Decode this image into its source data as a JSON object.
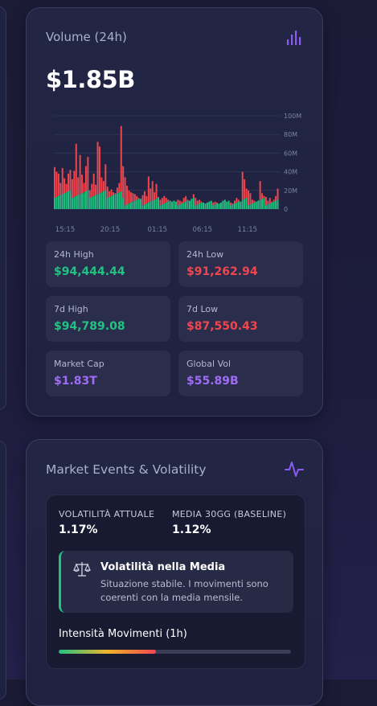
{
  "volume_card": {
    "title": "Volume (24h)",
    "icon": "bar-chart-icon",
    "value": "$1.85B",
    "stats": [
      {
        "label": "24h High",
        "value": "$94,444.44",
        "color": "#22c283"
      },
      {
        "label": "24h Low",
        "value": "$91,262.94",
        "color": "#f0474f"
      },
      {
        "label": "7d High",
        "value": "$94,789.08",
        "color": "#22c283"
      },
      {
        "label": "7d Low",
        "value": "$87,550.43",
        "color": "#f0474f"
      },
      {
        "label": "Market Cap",
        "value": "$1.83T",
        "color": "#a06cf5"
      },
      {
        "label": "Global Vol",
        "value": "$55.89B",
        "color": "#a06cf5"
      }
    ]
  },
  "chart_data": {
    "type": "bar",
    "x_ticks": [
      "15:15",
      "20:15",
      "01:15",
      "06:15",
      "11:15"
    ],
    "y_ticks": [
      "100M",
      "80M",
      "60M",
      "40M",
      "20M",
      "0"
    ],
    "ylim": [
      0,
      100
    ],
    "grid": true,
    "colors": {
      "up": "#22c283",
      "down": "#f0474f"
    },
    "series": [
      {
        "values": [
          45,
          40,
          38,
          28,
          44,
          33,
          27,
          38,
          42,
          32,
          41,
          70,
          34,
          58,
          37,
          28,
          46,
          56,
          20,
          27,
          38,
          26,
          72,
          67,
          34,
          30,
          48,
          24,
          19,
          21,
          18,
          17,
          23,
          28,
          89,
          46,
          34,
          25,
          20,
          18,
          17,
          16,
          14,
          12,
          11,
          15,
          19,
          14,
          35,
          22,
          30,
          18,
          27,
          13,
          10,
          12,
          14,
          12,
          10,
          9,
          8,
          9,
          8,
          10,
          9,
          8,
          12,
          14,
          10,
          9,
          11,
          16,
          12,
          9,
          10,
          8,
          7,
          6,
          7,
          8,
          9,
          7,
          8,
          7,
          6,
          7,
          9,
          10,
          8,
          9,
          7,
          6,
          9,
          12,
          10,
          8,
          40,
          32,
          22,
          20,
          17,
          10,
          9,
          8,
          9,
          30,
          17,
          14,
          13,
          9,
          12,
          8,
          10,
          14,
          22
        ]
      }
    ]
  },
  "events_card": {
    "title": "Market Events & Volatility",
    "icon": "activity-pulse-icon",
    "current_label": "VOLATILITÀ ATTUALE",
    "current_value": "1.17%",
    "baseline_label": "MEDIA 30GG (BASELINE)",
    "baseline_value": "1.12%",
    "note_icon": "scales-icon",
    "note_title": "Volatilità nella Media",
    "note_text": "Situazione stabile. I movimenti sono coerenti con la media mensile.",
    "intensity_label": "Intensità Movimenti (1h)",
    "intensity_fraction": 0.42
  }
}
